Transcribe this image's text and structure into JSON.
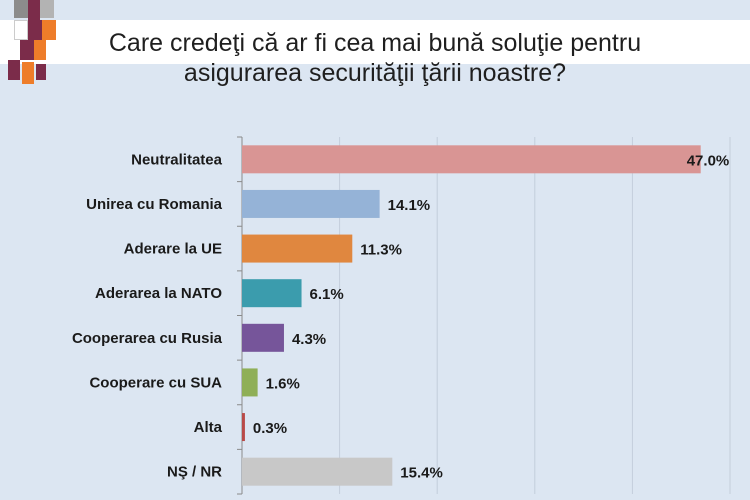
{
  "title_lines": [
    "Care credeţi că ar fi cea mai bună soluţie pentru",
    "asigurarea securităţii ţării noastre?"
  ],
  "chart_data": {
    "type": "bar",
    "orientation": "horizontal",
    "title": "Care credeţi că ar fi cea mai bună soluţie pentru asigurarea securităţii ţării noastre?",
    "categories": [
      "Neutralitatea",
      "Unirea cu Romania",
      "Aderare la UE",
      "Aderarea la NATO",
      "Cooperarea cu Rusia",
      "Cooperare cu SUA",
      "Alta",
      "NŞ / NR"
    ],
    "values": [
      47.0,
      14.1,
      11.3,
      6.1,
      4.3,
      1.6,
      0.3,
      15.4
    ],
    "value_labels": [
      "47.0%",
      "14.1%",
      "11.3%",
      "6.1%",
      "4.3%",
      "1.6%",
      "0.3%",
      "15.4%"
    ],
    "bar_colors": [
      "#d99594",
      "#95b3d7",
      "#e0873f",
      "#3b9cad",
      "#76559a",
      "#8faf57",
      "#b94a48",
      "#c8c8c8"
    ],
    "xlim": [
      0,
      50
    ],
    "grid": true,
    "legend": "none"
  }
}
